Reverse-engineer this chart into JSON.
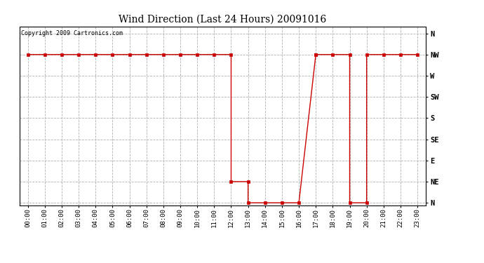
{
  "title": "Wind Direction (Last 24 Hours) 20091016",
  "copyright_text": "Copyright 2009 Cartronics.com",
  "line_color": "#cc0000",
  "marker_color": "#cc0000",
  "bg_color": "#ffffff",
  "grid_color": "#b0b0b0",
  "x_labels": [
    "00:00",
    "01:00",
    "02:00",
    "03:00",
    "04:00",
    "05:00",
    "06:00",
    "07:00",
    "08:00",
    "09:00",
    "10:00",
    "11:00",
    "12:00",
    "13:00",
    "14:00",
    "15:00",
    "16:00",
    "17:00",
    "18:00",
    "19:00",
    "20:00",
    "21:00",
    "22:00",
    "23:00"
  ],
  "y_labels": [
    "N",
    "NE",
    "E",
    "SE",
    "S",
    "SW",
    "W",
    "NW",
    "N"
  ],
  "y_values": [
    0,
    45,
    90,
    135,
    180,
    225,
    270,
    315,
    360
  ],
  "data_x": [
    0,
    1,
    2,
    3,
    4,
    5,
    6,
    7,
    8,
    9,
    10,
    11,
    12,
    12,
    13,
    13,
    14,
    15,
    16,
    17,
    17,
    18,
    19,
    19,
    20,
    20,
    21,
    22,
    23
  ],
  "data_y": [
    315,
    315,
    315,
    315,
    315,
    315,
    315,
    315,
    315,
    315,
    315,
    315,
    315,
    45,
    45,
    0,
    0,
    0,
    0,
    315,
    315,
    315,
    315,
    0,
    0,
    315,
    315,
    315,
    315
  ]
}
